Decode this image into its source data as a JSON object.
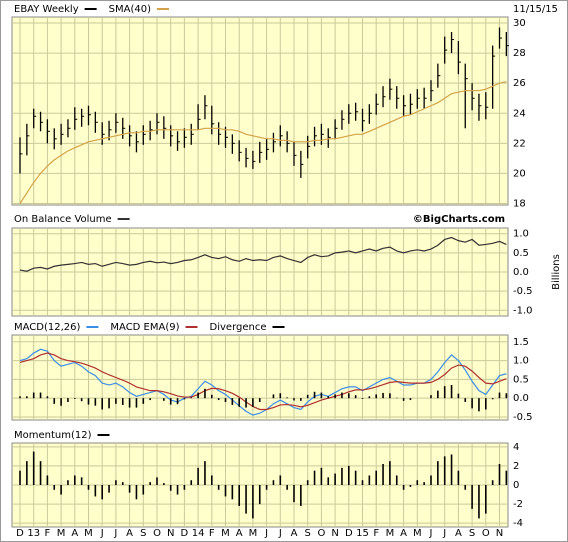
{
  "chart_data": [
    {
      "type": "ohlc",
      "date": "11/15/15",
      "grid": true,
      "ylim": [
        17.9,
        30.4
      ],
      "yticks": [
        18,
        20,
        22,
        24,
        26,
        28,
        30
      ],
      "series": [
        {
          "name": "EBAY Weekly",
          "color": "#000000",
          "style": "ohlc",
          "high": [
            22.4,
            23.3,
            24.3,
            24.1,
            23.6,
            23.0,
            23.3,
            23.6,
            24.4,
            24.3,
            24.5,
            24.1,
            23.4,
            23.5,
            24.0,
            23.7,
            23.2,
            22.8,
            23.2,
            23.5,
            24.0,
            23.8,
            23.2,
            22.8,
            23.0,
            23.3,
            24.6,
            25.2,
            24.5,
            23.4,
            23.1,
            22.6,
            22.2,
            21.7,
            21.5,
            22.1,
            22.3,
            22.7,
            23.2,
            22.8,
            22.1,
            21.5,
            22.5,
            23.1,
            23.3,
            23.0,
            23.6,
            24.2,
            24.6,
            24.7,
            24.3,
            24.6,
            25.3,
            25.8,
            26.3,
            25.8,
            25.2,
            25.3,
            25.6,
            25.7,
            26.2,
            27.3,
            29.1,
            29.4,
            28.8,
            27.3,
            26.0,
            25.3,
            25.4,
            28.5,
            29.7,
            29.4
          ],
          "low": [
            20.0,
            21.2,
            23.0,
            22.8,
            22.0,
            21.6,
            21.9,
            22.4,
            22.9,
            23.1,
            23.2,
            22.7,
            21.9,
            22.2,
            22.7,
            22.3,
            21.8,
            21.4,
            21.9,
            22.2,
            22.6,
            22.3,
            21.8,
            21.5,
            21.7,
            21.9,
            22.9,
            23.6,
            22.6,
            21.9,
            21.7,
            21.3,
            20.8,
            20.4,
            20.3,
            20.7,
            20.9,
            21.4,
            21.8,
            21.4,
            20.5,
            19.7,
            21.0,
            21.8,
            21.9,
            21.7,
            22.3,
            22.9,
            23.3,
            23.5,
            22.8,
            23.3,
            23.9,
            24.4,
            24.9,
            24.3,
            23.8,
            23.9,
            24.3,
            24.3,
            24.8,
            25.7,
            27.3,
            28.0,
            26.6,
            23.0,
            24.2,
            23.5,
            23.6,
            24.3,
            28.3,
            27.8
          ],
          "values": [
            21.3,
            22.5,
            23.8,
            23.4,
            22.8,
            22.3,
            22.6,
            23.0,
            23.6,
            23.8,
            23.9,
            23.4,
            22.6,
            22.9,
            23.4,
            23.0,
            22.5,
            22.1,
            22.6,
            22.9,
            23.4,
            23.0,
            22.5,
            22.1,
            22.4,
            22.6,
            23.6,
            24.5,
            23.3,
            22.6,
            22.4,
            22.0,
            21.4,
            21.0,
            20.8,
            21.4,
            21.6,
            22.1,
            22.5,
            22.0,
            21.2,
            20.6,
            21.8,
            22.5,
            22.6,
            22.4,
            23.0,
            23.6,
            24.0,
            24.1,
            23.5,
            24.0,
            24.6,
            25.1,
            25.6,
            25.0,
            24.5,
            24.6,
            25.0,
            25.0,
            25.5,
            26.5,
            28.2,
            28.9,
            27.4,
            26.3,
            25.0,
            24.5,
            24.4,
            27.8,
            29.0,
            28.5
          ]
        },
        {
          "name": "SMA(40)",
          "color": "#d4a14a",
          "style": "line",
          "values": [
            18.0,
            18.7,
            19.4,
            20.0,
            20.5,
            20.9,
            21.2,
            21.5,
            21.7,
            21.9,
            22.1,
            22.2,
            22.3,
            22.4,
            22.5,
            22.6,
            22.7,
            22.7,
            22.8,
            22.8,
            22.9,
            22.9,
            22.9,
            22.9,
            22.9,
            22.9,
            22.9,
            23.0,
            23.0,
            23.0,
            22.9,
            22.9,
            22.8,
            22.6,
            22.5,
            22.4,
            22.3,
            22.3,
            22.2,
            22.2,
            22.1,
            22.1,
            22.1,
            22.2,
            22.2,
            22.3,
            22.3,
            22.4,
            22.5,
            22.6,
            22.6,
            22.8,
            23.0,
            23.2,
            23.4,
            23.6,
            23.8,
            23.9,
            24.1,
            24.3,
            24.5,
            24.7,
            25.0,
            25.3,
            25.4,
            25.5,
            25.5,
            25.5,
            25.6,
            25.8,
            26.0,
            26.1
          ]
        }
      ]
    },
    {
      "type": "line",
      "source": "©BigCharts.com",
      "axis_label": "Billions",
      "grid": true,
      "ylim": [
        -1.15,
        1.15
      ],
      "yticks": [
        {
          "value": 1,
          "label": "1.0"
        },
        0.5,
        {
          "value": 0,
          "label": "0.0"
        },
        -0.5,
        {
          "value": -1,
          "label": "-1.0"
        }
      ],
      "series": [
        {
          "name": "On Balance Volume",
          "color": "#333333",
          "style": "line",
          "values": [
            0.05,
            0.02,
            0.1,
            0.12,
            0.08,
            0.15,
            0.18,
            0.2,
            0.22,
            0.25,
            0.2,
            0.22,
            0.15,
            0.2,
            0.25,
            0.22,
            0.18,
            0.2,
            0.25,
            0.28,
            0.24,
            0.26,
            0.22,
            0.25,
            0.3,
            0.32,
            0.38,
            0.45,
            0.38,
            0.35,
            0.4,
            0.32,
            0.28,
            0.35,
            0.3,
            0.32,
            0.3,
            0.38,
            0.42,
            0.35,
            0.3,
            0.25,
            0.38,
            0.45,
            0.4,
            0.42,
            0.5,
            0.52,
            0.55,
            0.5,
            0.55,
            0.6,
            0.55,
            0.62,
            0.65,
            0.55,
            0.5,
            0.55,
            0.58,
            0.55,
            0.6,
            0.7,
            0.85,
            0.9,
            0.82,
            0.78,
            0.85,
            0.7,
            0.72,
            0.75,
            0.8,
            0.72
          ]
        }
      ]
    },
    {
      "type": "line",
      "grid": true,
      "ylim": [
        -0.58,
        1.68
      ],
      "yticks": [
        1.5,
        {
          "value": 1,
          "label": "1.0"
        },
        0.5,
        {
          "value": 0,
          "label": "0.0"
        },
        -0.5
      ],
      "series": [
        {
          "name": "MACD(12,26)",
          "color": "#3a8ee6",
          "style": "line",
          "values": [
            1.0,
            1.05,
            1.2,
            1.3,
            1.25,
            1.0,
            0.85,
            0.9,
            0.95,
            0.85,
            0.7,
            0.6,
            0.4,
            0.35,
            0.4,
            0.3,
            0.15,
            0.05,
            0.1,
            0.15,
            0.2,
            0.1,
            -0.05,
            -0.1,
            0.0,
            0.05,
            0.25,
            0.45,
            0.35,
            0.2,
            0.1,
            -0.05,
            -0.2,
            -0.35,
            -0.45,
            -0.4,
            -0.3,
            -0.15,
            -0.05,
            -0.15,
            -0.25,
            -0.3,
            -0.1,
            0.05,
            0.1,
            0.05,
            0.15,
            0.25,
            0.3,
            0.3,
            0.2,
            0.3,
            0.4,
            0.5,
            0.55,
            0.45,
            0.35,
            0.35,
            0.4,
            0.4,
            0.5,
            0.7,
            0.95,
            1.15,
            1.0,
            0.75,
            0.45,
            0.2,
            0.1,
            0.35,
            0.6,
            0.65
          ]
        },
        {
          "name": "MACD EMA(9)",
          "color": "#b03030",
          "style": "line",
          "values": [
            0.95,
            1.0,
            1.05,
            1.15,
            1.2,
            1.15,
            1.05,
            1.0,
            0.97,
            0.93,
            0.87,
            0.8,
            0.7,
            0.62,
            0.55,
            0.48,
            0.4,
            0.3,
            0.25,
            0.2,
            0.2,
            0.17,
            0.12,
            0.06,
            0.03,
            0.03,
            0.1,
            0.2,
            0.26,
            0.25,
            0.2,
            0.13,
            0.03,
            -0.1,
            -0.22,
            -0.3,
            -0.3,
            -0.25,
            -0.18,
            -0.17,
            -0.19,
            -0.23,
            -0.19,
            -0.12,
            -0.05,
            0.0,
            0.05,
            0.1,
            0.17,
            0.22,
            0.22,
            0.25,
            0.3,
            0.36,
            0.42,
            0.44,
            0.42,
            0.4,
            0.4,
            0.4,
            0.42,
            0.5,
            0.63,
            0.8,
            0.88,
            0.85,
            0.72,
            0.55,
            0.4,
            0.38,
            0.45,
            0.52
          ]
        },
        {
          "name": "Divergence",
          "color": "#000000",
          "style": "bar",
          "values": [
            0.05,
            0.05,
            0.15,
            0.15,
            0.05,
            -0.15,
            -0.2,
            -0.1,
            -0.02,
            -0.08,
            -0.17,
            -0.2,
            -0.3,
            -0.27,
            -0.15,
            -0.18,
            -0.25,
            -0.25,
            -0.15,
            -0.05,
            0.0,
            -0.07,
            -0.17,
            -0.16,
            -0.03,
            0.02,
            0.15,
            0.25,
            0.09,
            -0.05,
            -0.1,
            -0.18,
            -0.23,
            -0.25,
            -0.23,
            -0.1,
            0.0,
            0.1,
            0.13,
            0.02,
            -0.06,
            -0.07,
            0.09,
            0.17,
            0.15,
            0.05,
            0.1,
            0.15,
            0.13,
            0.08,
            -0.02,
            0.05,
            0.1,
            0.14,
            0.13,
            0.01,
            -0.07,
            -0.05,
            0.0,
            0.0,
            0.08,
            0.2,
            0.32,
            0.35,
            0.12,
            -0.1,
            -0.27,
            -0.35,
            -0.3,
            -0.03,
            0.15,
            0.13
          ]
        }
      ]
    },
    {
      "type": "line",
      "grid": true,
      "ylim": [
        -4.4,
        4.4
      ],
      "yticks": [
        4,
        2,
        0,
        -2,
        -4
      ],
      "categories": [
        "D",
        null,
        "13",
        null,
        "F",
        null,
        "M",
        null,
        "A",
        null,
        "M",
        null,
        "J",
        null,
        "J",
        null,
        "A",
        null,
        "S",
        null,
        "O",
        null,
        "N",
        null,
        "D",
        null,
        "14",
        null,
        "F",
        null,
        "M",
        null,
        "A",
        null,
        "M",
        null,
        "J",
        null,
        "J",
        null,
        "A",
        null,
        "S",
        null,
        "O",
        null,
        "N",
        null,
        "D",
        null,
        "15",
        null,
        "F",
        null,
        "M",
        null,
        "A",
        null,
        "M",
        null,
        "J",
        null,
        "J",
        null,
        "A",
        null,
        "S",
        null,
        "O",
        null,
        "N",
        null
      ],
      "series": [
        {
          "name": "Momentum(12)",
          "color": "#000000",
          "style": "bar",
          "values": [
            1.5,
            2.5,
            3.5,
            2.5,
            1.0,
            -0.5,
            -1.0,
            0.5,
            1.0,
            0.8,
            -0.5,
            -1.2,
            -1.5,
            -0.8,
            0.5,
            0.3,
            -0.8,
            -1.5,
            -1.0,
            0.3,
            0.8,
            0.2,
            -0.6,
            -1.0,
            -0.5,
            0.5,
            1.8,
            2.5,
            1.0,
            -0.5,
            -1.2,
            -1.5,
            -2.2,
            -3.0,
            -3.5,
            -2.0,
            -0.5,
            0.5,
            1.0,
            -0.5,
            -1.8,
            -2.2,
            0.5,
            1.5,
            1.8,
            0.8,
            1.2,
            1.8,
            2.0,
            1.5,
            0.5,
            1.0,
            1.5,
            2.2,
            2.5,
            1.0,
            -0.5,
            -0.2,
            0.5,
            0.3,
            1.0,
            2.5,
            3.0,
            3.2,
            1.5,
            -0.5,
            -2.5,
            -3.5,
            -3.0,
            0.5,
            2.2,
            1.5
          ]
        }
      ]
    }
  ]
}
